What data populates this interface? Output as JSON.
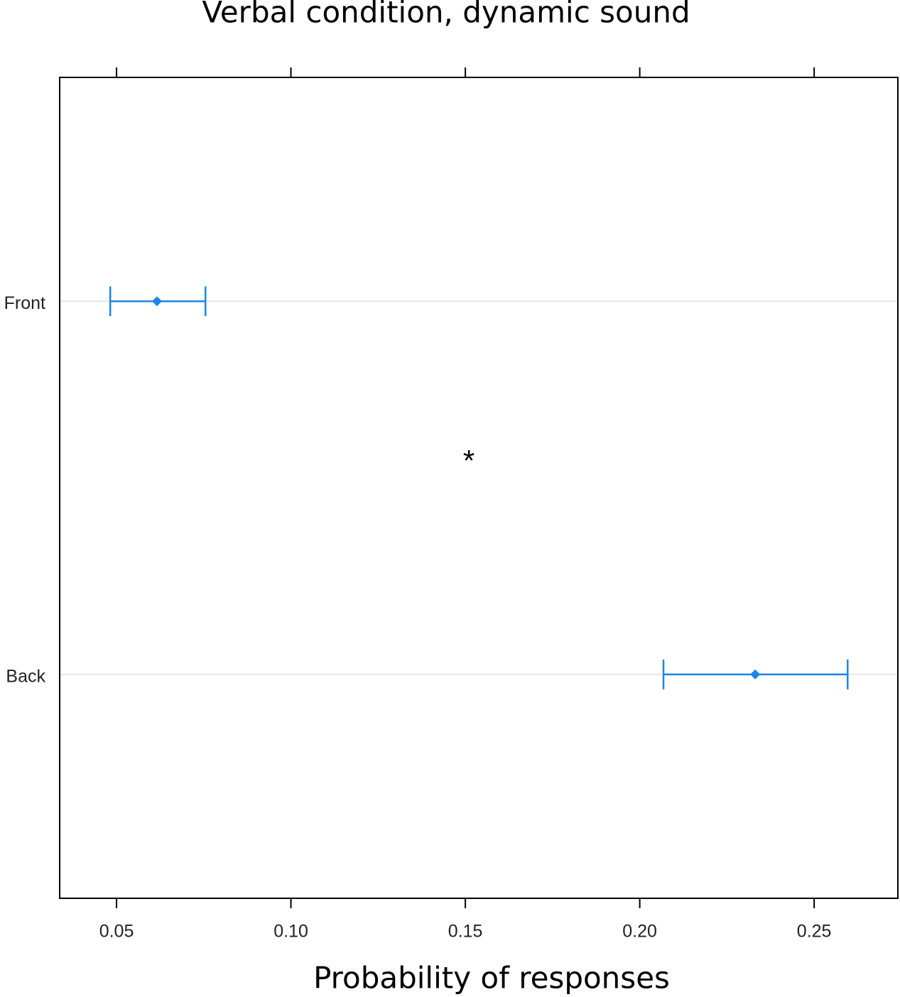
{
  "chart_data": {
    "type": "errorbar",
    "title": "Verbal condition, dynamic sound",
    "x_label": "Probability of responses",
    "annotation": "*",
    "categories": [
      "Front",
      "Back"
    ],
    "values": [
      0.0616,
      0.2331
    ],
    "lower": [
      0.0482,
      0.2068
    ],
    "upper": [
      0.0755,
      0.2596
    ],
    "color": "#1a87e6",
    "xlim": [
      0.0337,
      0.274
    ],
    "xticks": [
      {
        "value": 0.05,
        "label": "0.05"
      },
      {
        "value": 0.1,
        "label": "0.10"
      },
      {
        "value": 0.15,
        "label": "0.15"
      },
      {
        "value": 0.2,
        "label": "0.20"
      },
      {
        "value": 0.25,
        "label": "0.25"
      }
    ],
    "grid": true
  }
}
